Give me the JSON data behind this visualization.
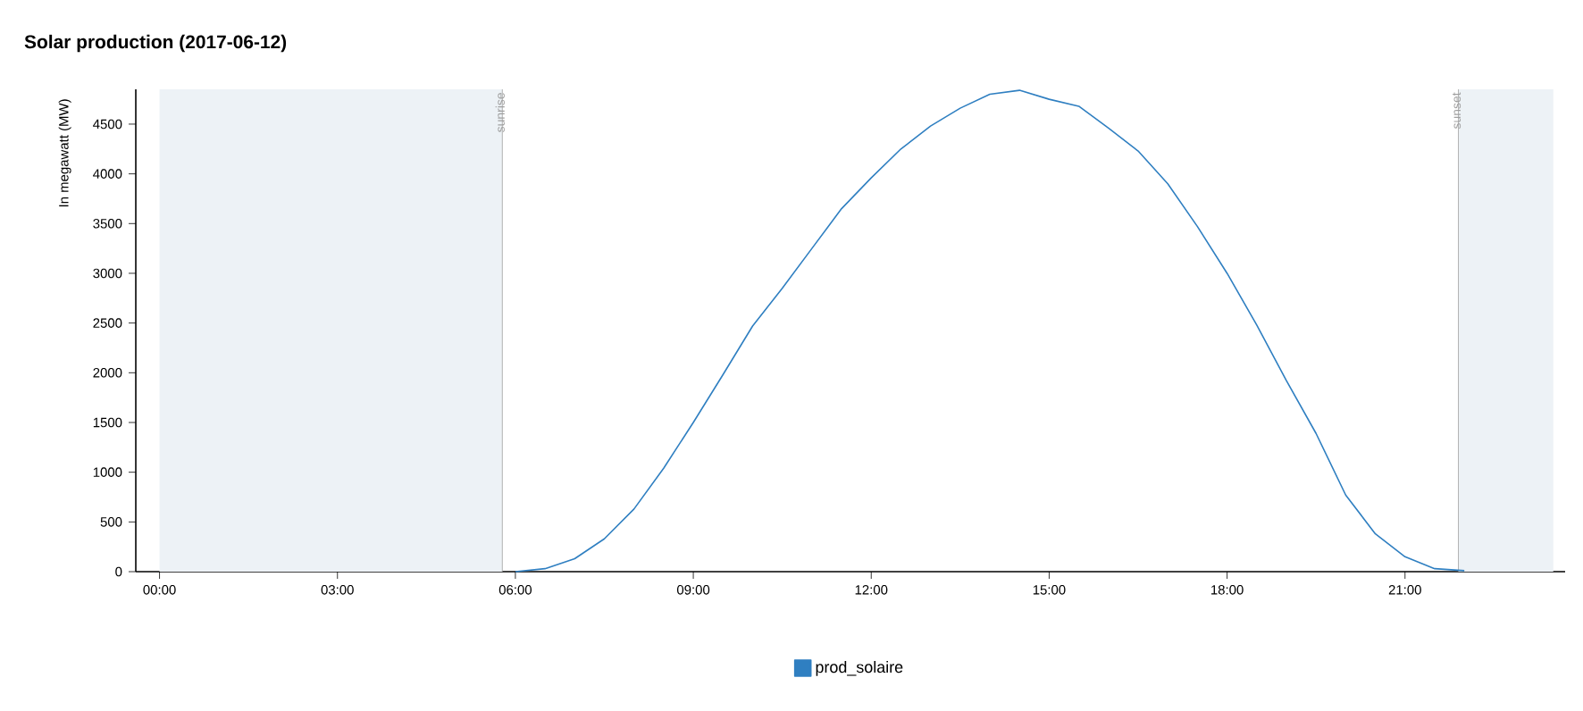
{
  "chart_data": {
    "type": "line",
    "title": "Solar production (2017-06-12)",
    "ylabel": "In megawatt (MW)",
    "x": [
      6,
      6.5,
      7,
      7.5,
      8,
      8.5,
      9,
      9.5,
      10,
      10.5,
      11,
      11.5,
      12,
      12.5,
      13,
      13.5,
      14,
      14.5,
      15,
      15.5,
      16,
      16.5,
      17,
      17.5,
      18,
      18.5,
      19,
      19.5,
      20,
      20.5,
      21,
      21.5,
      22
    ],
    "series": [
      {
        "name": "prod_solaire",
        "color": "#2f7fc1",
        "values": [
          0,
          30,
          130,
          330,
          630,
          1040,
          1500,
          1980,
          2470,
          2850,
          3250,
          3650,
          3960,
          4250,
          4480,
          4660,
          4800,
          4840,
          4750,
          4680,
          4460,
          4230,
          3900,
          3470,
          3000,
          2480,
          1920,
          1390,
          770,
          380,
          150,
          30,
          10
        ]
      }
    ],
    "xlim": [
      -0.4,
      23.7
    ],
    "ylim": [
      0,
      4850
    ],
    "xticks": [
      {
        "value": 0,
        "label": "00:00"
      },
      {
        "value": 3,
        "label": "03:00"
      },
      {
        "value": 6,
        "label": "06:00"
      },
      {
        "value": 9,
        "label": "09:00"
      },
      {
        "value": 12,
        "label": "12:00"
      },
      {
        "value": 15,
        "label": "15:00"
      },
      {
        "value": 18,
        "label": "18:00"
      },
      {
        "value": 21,
        "label": "21:00"
      }
    ],
    "yticks": [
      0,
      500,
      1000,
      1500,
      2000,
      2500,
      3000,
      3500,
      4000,
      4500
    ],
    "bands": [
      {
        "axis": "x",
        "from": 0,
        "to": 5.78,
        "color": "#edf2f6"
      },
      {
        "axis": "x",
        "from": 21.9,
        "to": 23.5,
        "color": "#edf2f6"
      }
    ],
    "ref_lines": [
      {
        "axis": "x",
        "value": 5.78,
        "label": "sunrise",
        "color": "#a0a0a0"
      },
      {
        "axis": "x",
        "value": 21.9,
        "label": "sunset",
        "color": "#a0a0a0"
      }
    ],
    "legend": "bottom"
  }
}
